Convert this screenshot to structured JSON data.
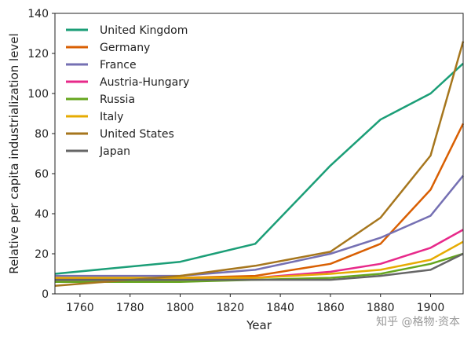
{
  "chart_data": {
    "type": "line",
    "xlabel": "Year",
    "ylabel": "Relative per capita industrialization level",
    "xlim": [
      1750,
      1913
    ],
    "ylim": [
      0,
      140
    ],
    "x_ticks": [
      1760,
      1780,
      1800,
      1820,
      1840,
      1860,
      1880,
      1900
    ],
    "y_ticks": [
      0,
      20,
      40,
      60,
      80,
      100,
      120,
      140
    ],
    "x": [
      1750,
      1800,
      1830,
      1860,
      1880,
      1900,
      1913
    ],
    "legend_position": "top-left",
    "grid": false,
    "series": [
      {
        "name": "United Kingdom",
        "color": "#1b9e77",
        "values": [
          10,
          16,
          25,
          64,
          87,
          100,
          115
        ]
      },
      {
        "name": "Germany",
        "color": "#d95f02",
        "values": [
          8,
          8,
          9,
          15,
          25,
          52,
          85
        ]
      },
      {
        "name": "France",
        "color": "#7570b3",
        "values": [
          9,
          9,
          12,
          20,
          28,
          39,
          59
        ]
      },
      {
        "name": "Austria-Hungary",
        "color": "#e7298a",
        "values": [
          7,
          7,
          8,
          11,
          15,
          23,
          32
        ]
      },
      {
        "name": "Russia",
        "color": "#66a61e",
        "values": [
          6,
          6,
          7,
          8,
          10,
          15,
          20
        ]
      },
      {
        "name": "Italy",
        "color": "#e6ab02",
        "values": [
          8,
          8,
          8,
          10,
          12,
          17,
          26
        ]
      },
      {
        "name": "United States",
        "color": "#a6761d",
        "values": [
          4,
          9,
          14,
          21,
          38,
          69,
          126
        ]
      },
      {
        "name": "Japan",
        "color": "#666666",
        "values": [
          7,
          7,
          7,
          7,
          9,
          12,
          20
        ]
      }
    ]
  },
  "watermark": "知乎 @格物·资本"
}
